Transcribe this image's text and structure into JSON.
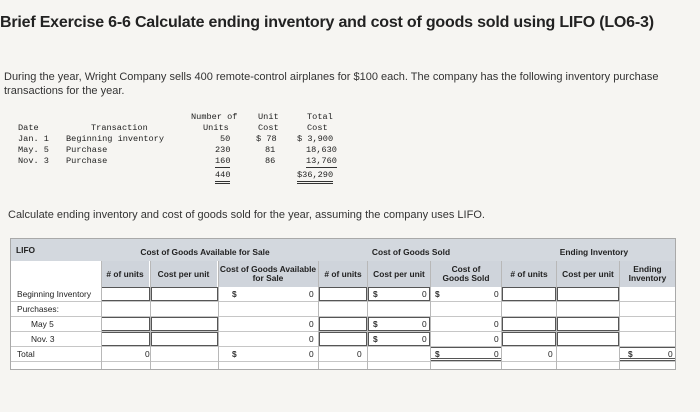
{
  "title": "Brief Exercise 6-6 Calculate ending inventory and cost of goods sold using LIFO (LO6-3)",
  "intro": "During the year, Wright Company sells 400 remote-control airplanes for $100 each. The company has the following inventory purchase transactions for the year.",
  "transactions": {
    "headers": {
      "date": "Date",
      "transaction": "Transaction",
      "units_l1": "Number of",
      "units_l2": "Units",
      "cost_l1": "Unit",
      "cost_l2": "Cost",
      "total_l1": "Total",
      "total_l2": "Cost"
    },
    "rows": [
      {
        "date": "Jan. 1",
        "transaction": "Beginning inventory",
        "units": "50",
        "cost": "$ 78",
        "total": "$ 3,900"
      },
      {
        "date": "May. 5",
        "transaction": "Purchase",
        "units": "230",
        "cost": "81",
        "total": "18,630"
      },
      {
        "date": "Nov. 3",
        "transaction": "Purchase",
        "units": "160",
        "cost": "86",
        "total": "13,760"
      }
    ],
    "total_units": "440",
    "total_cost": "$36,290"
  },
  "instruction": "Calculate ending inventory and cost of goods sold for the year, assuming the company uses LIFO.",
  "worksheet": {
    "method": "LIFO",
    "groups": {
      "available": "Cost of Goods Available for Sale",
      "sold": "Cost of Goods Sold",
      "ending": "Ending Inventory"
    },
    "columns": {
      "units": "# of units",
      "cost_per_unit": "Cost per unit",
      "cogas": "Cost of Goods Available for Sale",
      "cogs": "Cost of Goods Sold",
      "ending": "Ending Inventory"
    },
    "rows": {
      "beginning": "Beginning Inventory",
      "purchases": "Purchases:",
      "may": "May 5",
      "nov": "Nov. 3",
      "total": "Total"
    },
    "values": {
      "zero": "0",
      "dollar": "$"
    }
  }
}
